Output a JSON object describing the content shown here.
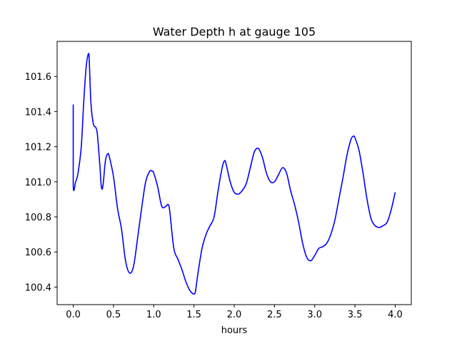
{
  "chart_data": {
    "type": "line",
    "title": "Water Depth h at gauge 105",
    "xlabel": "hours",
    "ylabel": "",
    "xlim": [
      -0.2,
      4.2
    ],
    "ylim": [
      100.3,
      101.8
    ],
    "xticks": [
      0.0,
      0.5,
      1.0,
      1.5,
      2.0,
      2.5,
      3.0,
      3.5,
      4.0
    ],
    "xtick_labels": [
      "0.0",
      "0.5",
      "1.0",
      "1.5",
      "2.0",
      "2.5",
      "3.0",
      "3.5",
      "4.0"
    ],
    "yticks": [
      100.4,
      100.6,
      100.8,
      101.0,
      101.2,
      101.4,
      101.6
    ],
    "ytick_labels": [
      "100.4",
      "100.6",
      "100.8",
      "101.0",
      "101.2",
      "101.4",
      "101.6"
    ],
    "grid": false,
    "series": [
      {
        "color": "#0000ff",
        "x": [
          0.0,
          0.0,
          0.03,
          0.06,
          0.1,
          0.13,
          0.16,
          0.19,
          0.2,
          0.22,
          0.25,
          0.28,
          0.3,
          0.33,
          0.35,
          0.37,
          0.4,
          0.43,
          0.45,
          0.5,
          0.55,
          0.6,
          0.65,
          0.7,
          0.75,
          0.8,
          0.85,
          0.9,
          0.95,
          0.98,
          1.0,
          1.05,
          1.1,
          1.15,
          1.18,
          1.2,
          1.25,
          1.3,
          1.35,
          1.4,
          1.45,
          1.5,
          1.52,
          1.55,
          1.6,
          1.65,
          1.7,
          1.75,
          1.8,
          1.85,
          1.88,
          1.9,
          1.95,
          2.0,
          2.05,
          2.1,
          2.15,
          2.2,
          2.25,
          2.3,
          2.35,
          2.4,
          2.45,
          2.5,
          2.55,
          2.6,
          2.65,
          2.7,
          2.75,
          2.8,
          2.85,
          2.9,
          2.95,
          3.0,
          3.05,
          3.1,
          3.15,
          3.2,
          3.25,
          3.3,
          3.35,
          3.4,
          3.45,
          3.48,
          3.5,
          3.55,
          3.6,
          3.65,
          3.7,
          3.75,
          3.8,
          3.85,
          3.9,
          3.95,
          4.0
        ],
        "y": [
          101.44,
          100.98,
          101.0,
          101.05,
          101.2,
          101.45,
          101.65,
          101.73,
          101.68,
          101.45,
          101.33,
          101.31,
          101.27,
          101.1,
          100.97,
          100.98,
          101.12,
          101.16,
          101.14,
          101.03,
          100.85,
          100.73,
          100.55,
          100.48,
          100.52,
          100.68,
          100.85,
          101.0,
          101.06,
          101.06,
          101.05,
          100.97,
          100.86,
          100.86,
          100.87,
          100.83,
          100.62,
          100.56,
          100.5,
          100.43,
          100.38,
          100.36,
          100.38,
          100.48,
          100.62,
          100.7,
          100.75,
          100.8,
          100.95,
          101.08,
          101.12,
          101.1,
          101.0,
          100.94,
          100.93,
          100.95,
          100.99,
          101.08,
          101.17,
          101.19,
          101.14,
          101.05,
          101.0,
          101.0,
          101.04,
          101.08,
          101.05,
          100.95,
          100.87,
          100.77,
          100.65,
          100.57,
          100.55,
          100.58,
          100.62,
          100.63,
          100.65,
          100.7,
          100.78,
          100.9,
          101.02,
          101.15,
          101.24,
          101.26,
          101.25,
          101.18,
          101.05,
          100.9,
          100.79,
          100.75,
          100.74,
          100.75,
          100.77,
          100.84,
          100.94
        ]
      }
    ]
  }
}
